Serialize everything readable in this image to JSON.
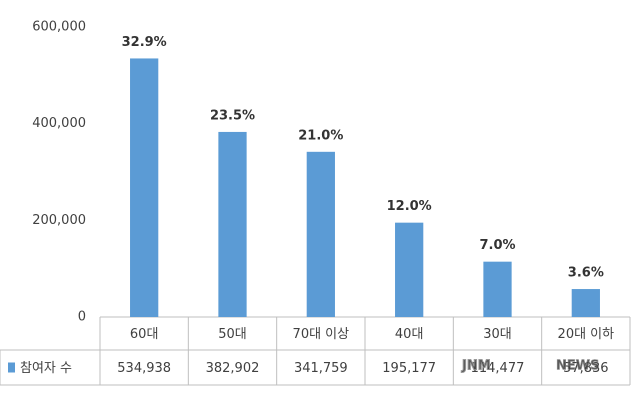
{
  "chart_data": {
    "type": "bar",
    "categories": [
      "60대",
      "50대",
      "70대 이상",
      "40대",
      "30대",
      "20대 이하"
    ],
    "series": [
      {
        "name": "참여자 수",
        "color": "#5b9bd5",
        "values": [
          534938,
          382902,
          341759,
          195177,
          114477,
          57836
        ],
        "value_labels": [
          "534,938",
          "382,902",
          "341,759",
          "195,177",
          "114,477",
          "57,836"
        ]
      }
    ],
    "shares": {
      "values": [
        32.9,
        23.5,
        21.0,
        12.0,
        7.0,
        3.6
      ],
      "value_labels": [
        "32.9%",
        "23.5%",
        "21.0%",
        "12.0%",
        "7.0%",
        "3.6%"
      ]
    },
    "ylim": [
      0,
      600000
    ],
    "yticks": [
      0,
      {
        "value": 200000,
        "label": "200,000"
      },
      {
        "value": 400000,
        "label": "400,000"
      },
      {
        "value": 600000,
        "label": "600,000"
      }
    ],
    "grid": false,
    "data_table": true,
    "watermark": [
      "JNM",
      "NEWS"
    ]
  }
}
